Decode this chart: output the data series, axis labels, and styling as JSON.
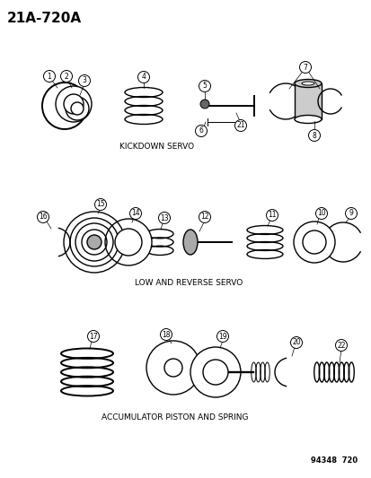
{
  "title": "21A-720A",
  "section1_label": "KICKDOWN SERVO",
  "section2_label": "LOW AND REVERSE SERVO",
  "section3_label": "ACCUMULATOR PISTON AND SPRING",
  "part_number": "94348  720",
  "background_color": "#ffffff",
  "line_color": "#000000",
  "title_fontsize": 11,
  "label_fontsize": 6.5,
  "part_fontsize": 6,
  "callout_fontsize": 5.5
}
